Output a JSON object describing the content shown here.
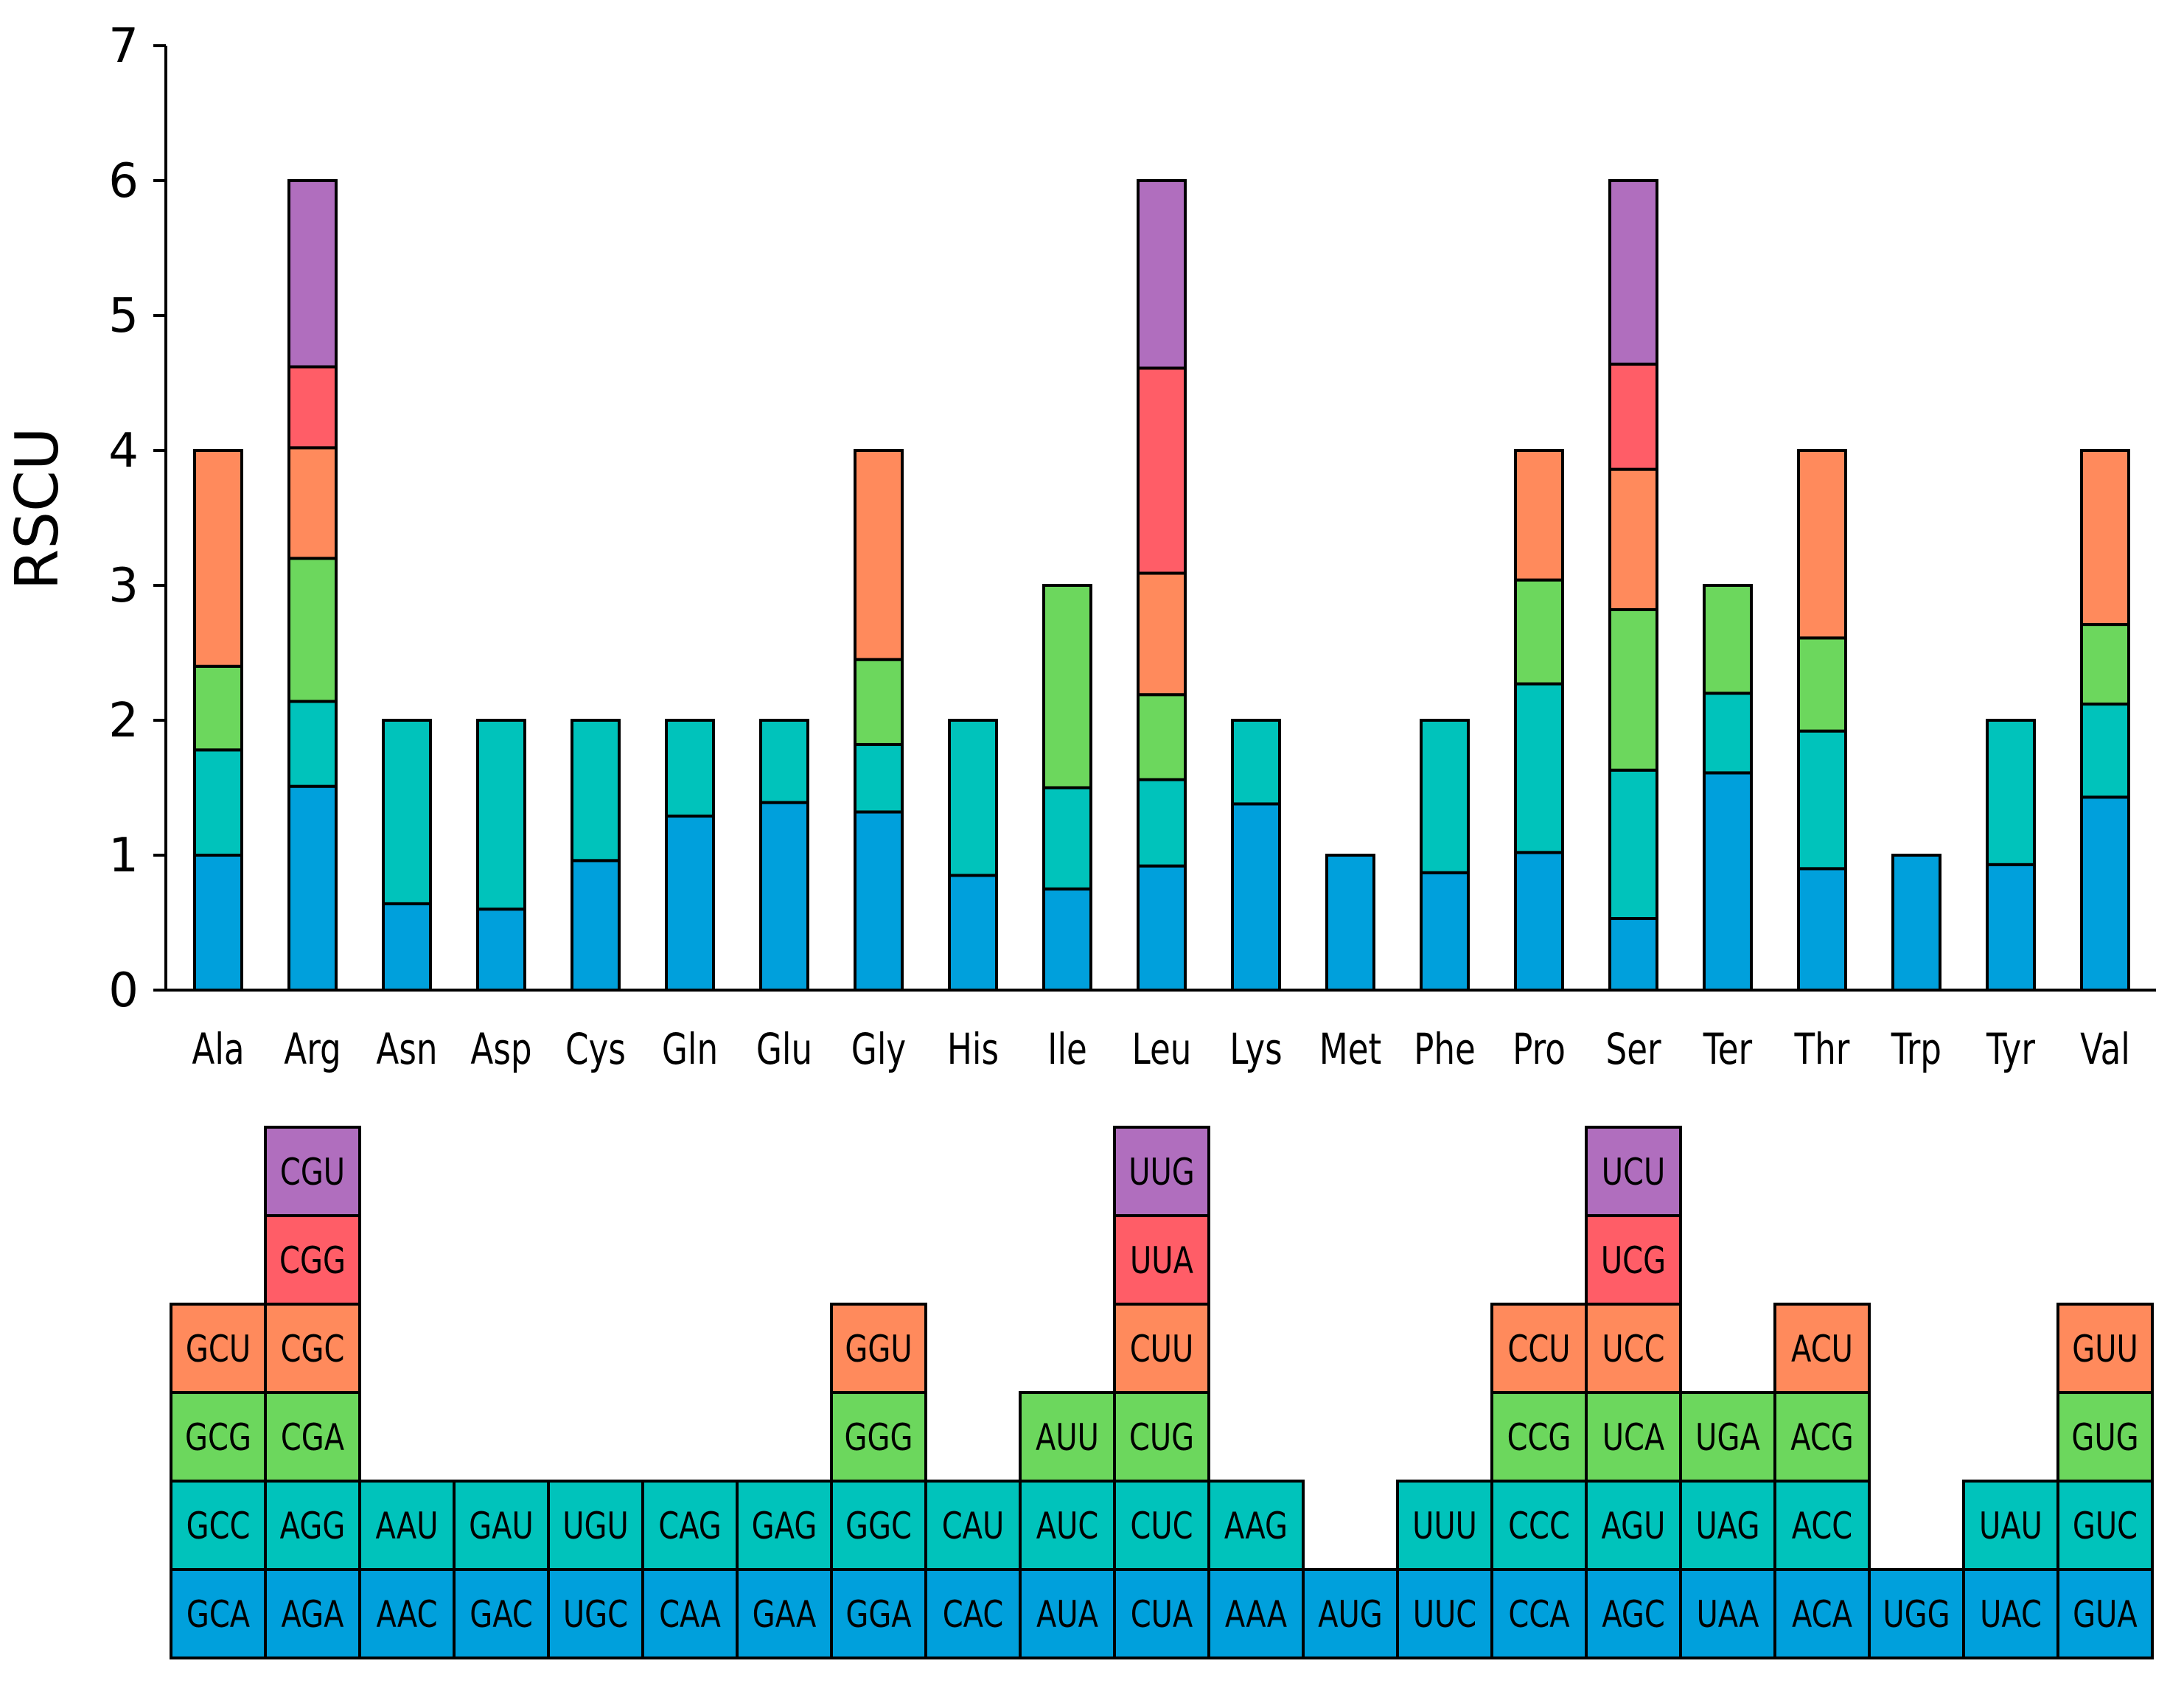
{
  "colors": {
    "level1": "#00a0dc",
    "level2": "#00c3bb",
    "level3": "#6cd75d",
    "level4": "#ff8a5c",
    "level5": "#ff5d67",
    "level6": "#b06ebe"
  },
  "chart_data": {
    "type": "bar",
    "stacked": true,
    "title": "",
    "xlabel": "",
    "ylabel": "RSCU",
    "ylim": [
      0,
      7
    ],
    "yticks": [
      "0",
      "1",
      "2",
      "3",
      "4",
      "5",
      "6",
      "7"
    ],
    "categories": [
      "Ala",
      "Arg",
      "Asn",
      "Asp",
      "Cys",
      "Gln",
      "Glu",
      "Gly",
      "His",
      "Ile",
      "Leu",
      "Lys",
      "Met",
      "Phe",
      "Pro",
      "Ser",
      "Ter",
      "Thr",
      "Trp",
      "Tyr",
      "Val"
    ],
    "stacks": [
      {
        "segments": [
          1.0,
          0.78,
          0.62,
          1.6
        ]
      },
      {
        "segments": [
          1.51,
          0.63,
          1.06,
          0.82,
          0.6,
          1.38
        ]
      },
      {
        "segments": [
          0.64,
          1.36
        ]
      },
      {
        "segments": [
          0.6,
          1.4
        ]
      },
      {
        "segments": [
          0.96,
          1.04
        ]
      },
      {
        "segments": [
          1.29,
          0.71
        ]
      },
      {
        "segments": [
          1.39,
          0.61
        ]
      },
      {
        "segments": [
          1.32,
          0.5,
          0.63,
          1.55
        ]
      },
      {
        "segments": [
          0.85,
          1.15
        ]
      },
      {
        "segments": [
          0.75,
          0.75,
          1.5
        ]
      },
      {
        "segments": [
          0.92,
          0.64,
          0.63,
          0.9,
          1.52,
          1.39
        ]
      },
      {
        "segments": [
          1.38,
          0.62
        ]
      },
      {
        "segments": [
          1.0
        ]
      },
      {
        "segments": [
          0.87,
          1.13
        ]
      },
      {
        "segments": [
          1.02,
          1.25,
          0.77,
          0.96
        ]
      },
      {
        "segments": [
          0.53,
          1.1,
          1.19,
          1.04,
          0.78,
          1.36
        ]
      },
      {
        "segments": [
          1.61,
          0.59,
          0.8
        ]
      },
      {
        "segments": [
          0.9,
          1.02,
          0.69,
          1.39
        ]
      },
      {
        "segments": [
          1.0
        ]
      },
      {
        "segments": [
          0.93,
          1.07
        ]
      },
      {
        "segments": [
          1.43,
          0.69,
          0.59,
          1.29
        ]
      }
    ]
  },
  "codon_table": {
    "columns": [
      [
        "GCA",
        "GCC",
        "GCG",
        "GCU"
      ],
      [
        "AGA",
        "AGG",
        "CGA",
        "CGC",
        "CGG",
        "CGU"
      ],
      [
        "AAC",
        "AAU"
      ],
      [
        "GAC",
        "GAU"
      ],
      [
        "UGC",
        "UGU"
      ],
      [
        "CAA",
        "CAG"
      ],
      [
        "GAA",
        "GAG"
      ],
      [
        "GGA",
        "GGC",
        "GGG",
        "GGU"
      ],
      [
        "CAC",
        "CAU"
      ],
      [
        "AUA",
        "AUC",
        "AUU"
      ],
      [
        "CUA",
        "CUC",
        "CUG",
        "CUU",
        "UUA",
        "UUG"
      ],
      [
        "AAA",
        "AAG"
      ],
      [
        "AUG"
      ],
      [
        "UUC",
        "UUU"
      ],
      [
        "CCA",
        "CCC",
        "CCG",
        "CCU"
      ],
      [
        "AGC",
        "AGU",
        "UCA",
        "UCC",
        "UCG",
        "UCU"
      ],
      [
        "UAA",
        "UAG",
        "UGA"
      ],
      [
        "ACA",
        "ACC",
        "ACG",
        "ACU"
      ],
      [
        "UGG"
      ],
      [
        "UAC",
        "UAU"
      ],
      [
        "GUA",
        "GUC",
        "GUG",
        "GUU"
      ]
    ]
  }
}
